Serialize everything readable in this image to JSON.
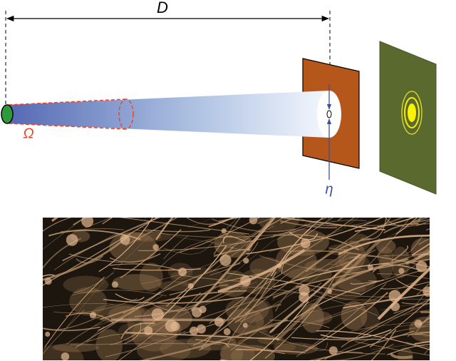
{
  "labels": {
    "distance": "D",
    "solid_angle": "Ω",
    "aperture": "η"
  }
}
